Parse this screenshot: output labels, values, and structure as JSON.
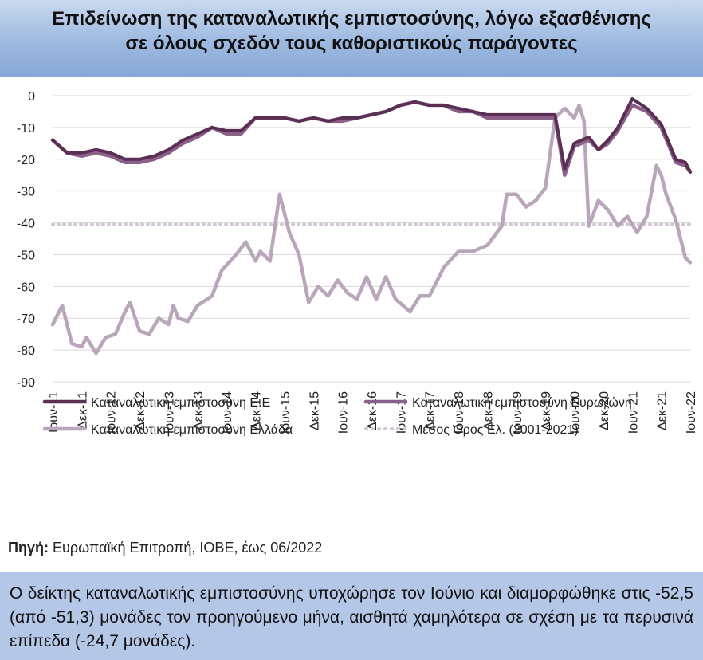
{
  "header": {
    "title_line1": "Επιδείνωση της καταναλωτικής εμπιστοσύνης, λόγω εξασθένισης",
    "title_line2": "σε όλους σχεδόν τους καθοριστικούς παράγοντες"
  },
  "source": {
    "label": "Πηγή:",
    "text": " Ευρωπαϊκή Επιτροπή, ΙΟΒΕ, έως 06/2022"
  },
  "note": {
    "text": "Ο δείκτης καταναλωτικής εμπιστοσύνης υποχώρησε τον Ιούνιο και διαμορφώθηκε στις -52,5 (από -51,3) μονάδες τον προηγούμενο μήνα, αισθητά χαμηλότερα σε σχέση με τα περυσινά επίπεδα (-24,7 μονάδες)."
  },
  "colors": {
    "eu": "#5b2e54",
    "ez": "#8a6289",
    "gr": "#b9a6bb",
    "avg": "#d3c7d5",
    "grid": "#d9d9d9",
    "title_band": "#9db9e0",
    "note_band": "#b4c7e7"
  },
  "chart_data": {
    "type": "line",
    "x_tick_labels": [
      "Ιουν-11",
      "Δεκ-11",
      "Ιουν-12",
      "Δεκ-12",
      "Ιουν-13",
      "Δεκ-13",
      "Ιουν-14",
      "Δεκ-14",
      "Ιουν-15",
      "Δεκ-15",
      "Ιουν-16",
      "Δεκ-16",
      "Ιουν-17",
      "Δεκ-17",
      "Ιουν-18",
      "Δεκ-18",
      "Ιουν-19",
      "Δεκ-19",
      "Ιουν-20",
      "Δεκ-20",
      "Ιουν-21",
      "Δεκ-21",
      "Ιουν-22"
    ],
    "x_start": "2011-06",
    "x_end": "2022-06",
    "ylim": [
      -90,
      0
    ],
    "y_ticks": [
      0,
      -10,
      -20,
      -30,
      -40,
      -50,
      -60,
      -70,
      -80,
      -90
    ],
    "grid": true,
    "legend_position": "bottom",
    "series": [
      {
        "name": "Καταναλωτική εμπιστοσύνη Ε.Ε",
        "style": "solid-thick",
        "points": [
          [
            "2011-06",
            -14
          ],
          [
            "2011-09",
            -18
          ],
          [
            "2011-12",
            -18
          ],
          [
            "2012-03",
            -17
          ],
          [
            "2012-06",
            -18
          ],
          [
            "2012-09",
            -20
          ],
          [
            "2012-12",
            -20
          ],
          [
            "2013-03",
            -19
          ],
          [
            "2013-06",
            -17
          ],
          [
            "2013-09",
            -14
          ],
          [
            "2013-12",
            -12
          ],
          [
            "2014-03",
            -10
          ],
          [
            "2014-06",
            -11
          ],
          [
            "2014-09",
            -11
          ],
          [
            "2014-12",
            -7
          ],
          [
            "2015-03",
            -7
          ],
          [
            "2015-06",
            -7
          ],
          [
            "2015-09",
            -8
          ],
          [
            "2015-12",
            -7
          ],
          [
            "2016-03",
            -8
          ],
          [
            "2016-06",
            -7
          ],
          [
            "2016-09",
            -7
          ],
          [
            "2016-12",
            -6
          ],
          [
            "2017-03",
            -5
          ],
          [
            "2017-06",
            -3
          ],
          [
            "2017-09",
            -2
          ],
          [
            "2017-12",
            -3
          ],
          [
            "2018-03",
            -3
          ],
          [
            "2018-06",
            -4
          ],
          [
            "2018-09",
            -5
          ],
          [
            "2018-12",
            -6
          ],
          [
            "2019-03",
            -6
          ],
          [
            "2019-06",
            -6
          ],
          [
            "2019-09",
            -6
          ],
          [
            "2019-12",
            -6
          ],
          [
            "2020-02",
            -6
          ],
          [
            "2020-04",
            -23
          ],
          [
            "2020-06",
            -15
          ],
          [
            "2020-09",
            -13
          ],
          [
            "2020-11",
            -17
          ],
          [
            "2021-01",
            -14
          ],
          [
            "2021-03",
            -10
          ],
          [
            "2021-06",
            -1
          ],
          [
            "2021-09",
            -4
          ],
          [
            "2021-12",
            -9
          ],
          [
            "2022-03",
            -20
          ],
          [
            "2022-05",
            -21
          ],
          [
            "2022-06",
            -24
          ]
        ]
      },
      {
        "name": "Καταναλωτική εμπιστοσύνη Ευρωζώνη",
        "style": "solid-thick",
        "points": [
          [
            "2011-06",
            -14
          ],
          [
            "2011-09",
            -18
          ],
          [
            "2011-12",
            -19
          ],
          [
            "2012-03",
            -18
          ],
          [
            "2012-06",
            -19
          ],
          [
            "2012-09",
            -21
          ],
          [
            "2012-12",
            -21
          ],
          [
            "2013-03",
            -20
          ],
          [
            "2013-06",
            -18
          ],
          [
            "2013-09",
            -15
          ],
          [
            "2013-12",
            -13
          ],
          [
            "2014-03",
            -10
          ],
          [
            "2014-06",
            -12
          ],
          [
            "2014-09",
            -12
          ],
          [
            "2014-12",
            -7
          ],
          [
            "2015-03",
            -7
          ],
          [
            "2015-06",
            -7
          ],
          [
            "2015-09",
            -8
          ],
          [
            "2015-12",
            -7
          ],
          [
            "2016-03",
            -8
          ],
          [
            "2016-06",
            -8
          ],
          [
            "2016-09",
            -7
          ],
          [
            "2016-12",
            -6
          ],
          [
            "2017-03",
            -5
          ],
          [
            "2017-06",
            -3
          ],
          [
            "2017-09",
            -2
          ],
          [
            "2017-12",
            -3
          ],
          [
            "2018-03",
            -3
          ],
          [
            "2018-06",
            -5
          ],
          [
            "2018-09",
            -5
          ],
          [
            "2018-12",
            -7
          ],
          [
            "2019-03",
            -7
          ],
          [
            "2019-06",
            -7
          ],
          [
            "2019-09",
            -7
          ],
          [
            "2019-12",
            -7
          ],
          [
            "2020-02",
            -7
          ],
          [
            "2020-04",
            -25
          ],
          [
            "2020-06",
            -16
          ],
          [
            "2020-09",
            -14
          ],
          [
            "2020-11",
            -17
          ],
          [
            "2021-01",
            -15
          ],
          [
            "2021-03",
            -11
          ],
          [
            "2021-06",
            -3
          ],
          [
            "2021-09",
            -5
          ],
          [
            "2021-12",
            -10
          ],
          [
            "2022-03",
            -21
          ],
          [
            "2022-05",
            -22
          ],
          [
            "2022-06",
            -24
          ]
        ]
      },
      {
        "name": "Καταναλωτική εμπιστοσύνη Ελλάδα",
        "style": "solid-thick",
        "points": [
          [
            "2011-06",
            -72
          ],
          [
            "2011-08",
            -66
          ],
          [
            "2011-10",
            -78
          ],
          [
            "2011-12",
            -79
          ],
          [
            "2012-01",
            -76
          ],
          [
            "2012-03",
            -81
          ],
          [
            "2012-05",
            -76
          ],
          [
            "2012-07",
            -75
          ],
          [
            "2012-09",
            -68
          ],
          [
            "2012-10",
            -65
          ],
          [
            "2012-12",
            -74
          ],
          [
            "2013-02",
            -75
          ],
          [
            "2013-04",
            -70
          ],
          [
            "2013-06",
            -72
          ],
          [
            "2013-07",
            -66
          ],
          [
            "2013-08",
            -70
          ],
          [
            "2013-10",
            -71
          ],
          [
            "2013-12",
            -66
          ],
          [
            "2014-03",
            -63
          ],
          [
            "2014-05",
            -55
          ],
          [
            "2014-08",
            -50
          ],
          [
            "2014-10",
            -46
          ],
          [
            "2014-12",
            -52
          ],
          [
            "2015-01",
            -49
          ],
          [
            "2015-03",
            -52
          ],
          [
            "2015-05",
            -31
          ],
          [
            "2015-07",
            -43
          ],
          [
            "2015-09",
            -50
          ],
          [
            "2015-11",
            -65
          ],
          [
            "2016-01",
            -60
          ],
          [
            "2016-03",
            -63
          ],
          [
            "2016-05",
            -58
          ],
          [
            "2016-07",
            -62
          ],
          [
            "2016-09",
            -64
          ],
          [
            "2016-11",
            -57
          ],
          [
            "2017-01",
            -64
          ],
          [
            "2017-03",
            -57
          ],
          [
            "2017-05",
            -64
          ],
          [
            "2017-08",
            -68
          ],
          [
            "2017-10",
            -63
          ],
          [
            "2017-12",
            -63
          ],
          [
            "2018-03",
            -54
          ],
          [
            "2018-06",
            -49
          ],
          [
            "2018-09",
            -49
          ],
          [
            "2018-12",
            -47
          ],
          [
            "2019-03",
            -41
          ],
          [
            "2019-04",
            -31
          ],
          [
            "2019-06",
            -31
          ],
          [
            "2019-08",
            -35
          ],
          [
            "2019-10",
            -33
          ],
          [
            "2019-12",
            -29
          ],
          [
            "2020-02",
            -7
          ],
          [
            "2020-04",
            -4
          ],
          [
            "2020-06",
            -7
          ],
          [
            "2020-07",
            -3
          ],
          [
            "2020-08",
            -8
          ],
          [
            "2020-09",
            -41
          ],
          [
            "2020-11",
            -33
          ],
          [
            "2021-01",
            -36
          ],
          [
            "2021-03",
            -41
          ],
          [
            "2021-05",
            -38
          ],
          [
            "2021-07",
            -43
          ],
          [
            "2021-09",
            -38
          ],
          [
            "2021-11",
            -22
          ],
          [
            "2021-12",
            -25
          ],
          [
            "2022-01",
            -31
          ],
          [
            "2022-03",
            -39
          ],
          [
            "2022-05",
            -51
          ],
          [
            "2022-06",
            -52.5
          ]
        ]
      },
      {
        "name": "Μέσος Όρος Ελ. (2001-2021)",
        "style": "dotted",
        "points": [
          [
            "2011-06",
            -40.5
          ],
          [
            "2022-06",
            -40.5
          ]
        ]
      }
    ]
  }
}
